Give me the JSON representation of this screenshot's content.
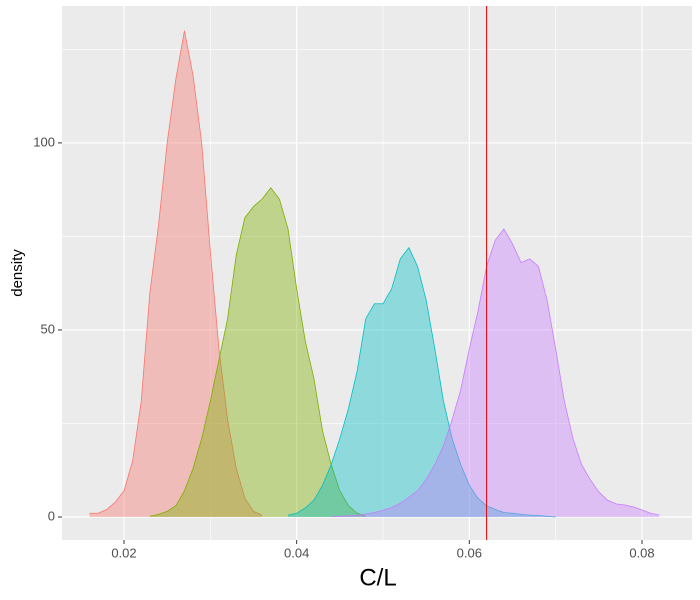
{
  "chart_data": {
    "type": "density",
    "x_label": "C/L",
    "y_label": "density",
    "xlim": [
      0.01282,
      0.08579
    ],
    "ylim": [
      -6.15,
      136.6
    ],
    "xticks": [
      0.02,
      0.04,
      0.06,
      0.08
    ],
    "yticks": [
      0,
      50,
      100
    ],
    "minor_xticks": [
      0.03,
      0.05,
      0.07
    ],
    "minor_yticks": [
      25,
      75,
      125
    ],
    "grid": true,
    "fill_opacity": 0.4,
    "series": [
      {
        "color": "#F8766D",
        "x": [
          0.016,
          0.017,
          0.018,
          0.019,
          0.02,
          0.021,
          0.022,
          0.023,
          0.024,
          0.025,
          0.026,
          0.027,
          0.028,
          0.029,
          0.03,
          0.031,
          0.032,
          0.033,
          0.034,
          0.035,
          0.036
        ],
        "values": [
          1,
          1,
          2,
          4,
          7,
          15,
          31,
          60,
          78,
          100,
          117,
          130,
          118,
          100,
          71,
          45,
          26,
          13,
          5,
          1.5,
          0.5
        ]
      },
      {
        "color": "#7CAE00",
        "x": [
          0.023,
          0.024,
          0.025,
          0.026,
          0.027,
          0.028,
          0.029,
          0.03,
          0.031,
          0.032,
          0.033,
          0.034,
          0.035,
          0.036,
          0.037,
          0.038,
          0.039,
          0.04,
          0.041,
          0.042,
          0.043,
          0.044,
          0.045,
          0.046,
          0.047,
          0.048
        ],
        "values": [
          0.2,
          0.7,
          1.5,
          3,
          7,
          13,
          21,
          31,
          42,
          53,
          70,
          80,
          83,
          85,
          88,
          85,
          77,
          61,
          47,
          37,
          23,
          14,
          7,
          3,
          1,
          0.3
        ]
      },
      {
        "color": "#00BFC4",
        "x": [
          0.039,
          0.04,
          0.041,
          0.042,
          0.043,
          0.044,
          0.045,
          0.046,
          0.047,
          0.048,
          0.049,
          0.05,
          0.051,
          0.052,
          0.053,
          0.054,
          0.055,
          0.056,
          0.057,
          0.058,
          0.059,
          0.06,
          0.061,
          0.062,
          0.063,
          0.064,
          0.065,
          0.066,
          0.067,
          0.068,
          0.069,
          0.07
        ],
        "values": [
          0.5,
          1,
          2.4,
          4.5,
          8.5,
          14,
          21,
          29,
          39,
          53,
          57,
          57,
          61,
          69,
          72,
          67,
          58,
          45,
          31,
          21,
          14,
          8.5,
          5,
          3,
          2,
          1.2,
          1,
          0.7,
          0.5,
          0.4,
          0.2,
          0
        ]
      },
      {
        "color": "#C77CFF",
        "x": [
          0.044,
          0.045,
          0.046,
          0.047,
          0.048,
          0.049,
          0.05,
          0.051,
          0.052,
          0.053,
          0.054,
          0.055,
          0.056,
          0.057,
          0.058,
          0.059,
          0.06,
          0.061,
          0.062,
          0.063,
          0.064,
          0.065,
          0.066,
          0.067,
          0.068,
          0.069,
          0.07,
          0.071,
          0.072,
          0.073,
          0.074,
          0.075,
          0.076,
          0.077,
          0.078,
          0.079,
          0.08,
          0.081,
          0.082
        ],
        "values": [
          0.1,
          0.2,
          0.3,
          0.5,
          0.8,
          1.2,
          1.8,
          2.5,
          3.7,
          5.3,
          7,
          10,
          14,
          19,
          26,
          34,
          45,
          55,
          67,
          74,
          77,
          73,
          68,
          69,
          67,
          58,
          45,
          31,
          21,
          14,
          10,
          6.7,
          4.5,
          3.5,
          3.2,
          2.7,
          1.9,
          1,
          0.5
        ]
      }
    ],
    "vline": {
      "value": 0.062,
      "color": "#E00000"
    }
  }
}
